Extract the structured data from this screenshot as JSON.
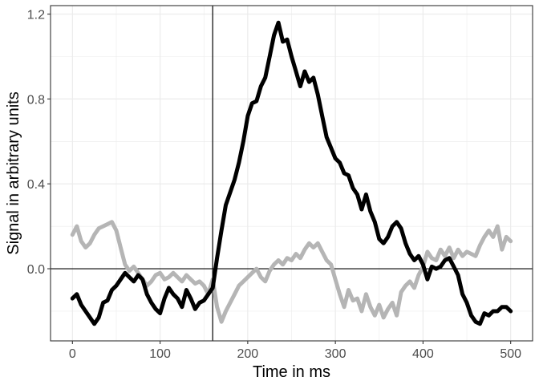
{
  "chart_data": {
    "type": "line",
    "title": "",
    "xlabel": "Time in ms",
    "ylabel": "Signal in arbitrary units",
    "xlim": [
      -25,
      525
    ],
    "ylim": [
      -0.34,
      1.24
    ],
    "x_ticks": [
      0,
      100,
      200,
      300,
      400,
      500
    ],
    "x_tick_labels": [
      "0",
      "100",
      "200",
      "300",
      "400",
      "500"
    ],
    "y_ticks": [
      0.0,
      0.4,
      0.8,
      1.2
    ],
    "y_tick_labels": [
      "0.0",
      "0.4",
      "0.8",
      "1.2"
    ],
    "grid": true,
    "reference_lines": {
      "vertical_x": 160,
      "horizontal_y": 0
    },
    "colors": {
      "series_dark": "#000000",
      "series_light": "#b5b5b5",
      "grid": "#ebebeb",
      "border": "#333333"
    },
    "series": [
      {
        "color": "#b5b5b5",
        "x": [
          0,
          5,
          10,
          15,
          20,
          25,
          30,
          35,
          40,
          45,
          50,
          55,
          60,
          65,
          70,
          75,
          80,
          85,
          90,
          95,
          100,
          105,
          110,
          115,
          120,
          125,
          130,
          135,
          140,
          145,
          150,
          155,
          160,
          165,
          170,
          175,
          180,
          185,
          190,
          195,
          200,
          205,
          210,
          215,
          220,
          225,
          230,
          235,
          240,
          245,
          250,
          255,
          260,
          265,
          270,
          275,
          280,
          285,
          290,
          295,
          300,
          305,
          310,
          315,
          320,
          325,
          330,
          335,
          340,
          345,
          350,
          355,
          360,
          365,
          370,
          375,
          380,
          385,
          390,
          395,
          400,
          405,
          410,
          415,
          420,
          425,
          430,
          435,
          440,
          445,
          450,
          455,
          460,
          465,
          470,
          475,
          480,
          485,
          490,
          495,
          500
        ],
        "y": [
          0.16,
          0.2,
          0.13,
          0.1,
          0.12,
          0.16,
          0.19,
          0.2,
          0.21,
          0.22,
          0.18,
          0.1,
          0.02,
          -0.01,
          0.01,
          -0.02,
          -0.05,
          -0.08,
          -0.06,
          -0.03,
          -0.02,
          -0.05,
          -0.04,
          -0.02,
          -0.04,
          -0.06,
          -0.03,
          -0.05,
          -0.07,
          -0.06,
          -0.08,
          -0.12,
          -0.05,
          -0.18,
          -0.25,
          -0.2,
          -0.16,
          -0.12,
          -0.08,
          -0.06,
          -0.04,
          -0.02,
          0.0,
          -0.04,
          -0.06,
          -0.01,
          0.02,
          0.04,
          0.02,
          0.05,
          0.04,
          0.07,
          0.05,
          0.09,
          0.12,
          0.1,
          0.12,
          0.08,
          0.04,
          0.02,
          -0.05,
          -0.12,
          -0.18,
          -0.1,
          -0.15,
          -0.14,
          -0.2,
          -0.12,
          -0.18,
          -0.22,
          -0.17,
          -0.23,
          -0.19,
          -0.16,
          -0.22,
          -0.11,
          -0.08,
          -0.06,
          -0.09,
          -0.03,
          0.01,
          0.08,
          0.05,
          0.04,
          0.09,
          0.06,
          0.1,
          0.05,
          0.09,
          0.06,
          0.08,
          0.07,
          0.06,
          0.11,
          0.15,
          0.18,
          0.15,
          0.2,
          0.09,
          0.15,
          0.13
        ]
      },
      {
        "color": "#000000",
        "x": [
          0,
          5,
          10,
          15,
          20,
          25,
          30,
          35,
          40,
          45,
          50,
          55,
          60,
          65,
          70,
          75,
          80,
          85,
          90,
          95,
          100,
          105,
          110,
          115,
          120,
          125,
          130,
          135,
          140,
          145,
          150,
          155,
          160,
          165,
          170,
          175,
          180,
          185,
          190,
          195,
          200,
          205,
          210,
          215,
          220,
          225,
          230,
          235,
          240,
          245,
          250,
          255,
          260,
          265,
          270,
          275,
          280,
          285,
          290,
          295,
          300,
          305,
          310,
          315,
          320,
          325,
          330,
          335,
          340,
          345,
          350,
          355,
          360,
          365,
          370,
          375,
          380,
          385,
          390,
          395,
          400,
          405,
          410,
          415,
          420,
          425,
          430,
          435,
          440,
          445,
          450,
          455,
          460,
          465,
          470,
          475,
          480,
          485,
          490,
          495,
          500
        ],
        "y": [
          -0.14,
          -0.12,
          -0.17,
          -0.2,
          -0.23,
          -0.26,
          -0.23,
          -0.16,
          -0.15,
          -0.1,
          -0.08,
          -0.05,
          -0.02,
          -0.04,
          -0.06,
          -0.03,
          -0.05,
          -0.12,
          -0.16,
          -0.19,
          -0.21,
          -0.14,
          -0.09,
          -0.12,
          -0.14,
          -0.18,
          -0.1,
          -0.14,
          -0.19,
          -0.16,
          -0.15,
          -0.12,
          -0.09,
          0.05,
          0.18,
          0.3,
          0.36,
          0.42,
          0.5,
          0.6,
          0.72,
          0.78,
          0.79,
          0.86,
          0.9,
          1.0,
          1.1,
          1.16,
          1.07,
          1.08,
          1.0,
          0.93,
          0.86,
          0.93,
          0.88,
          0.9,
          0.82,
          0.72,
          0.62,
          0.57,
          0.52,
          0.5,
          0.45,
          0.44,
          0.38,
          0.35,
          0.28,
          0.35,
          0.27,
          0.22,
          0.14,
          0.12,
          0.15,
          0.2,
          0.22,
          0.19,
          0.12,
          0.07,
          0.04,
          0.06,
          0.02,
          -0.05,
          0.01,
          0.0,
          0.01,
          0.04,
          0.05,
          0.01,
          -0.03,
          -0.12,
          -0.16,
          -0.22,
          -0.25,
          -0.26,
          -0.21,
          -0.22,
          -0.2,
          -0.2,
          -0.18,
          -0.18,
          -0.2
        ]
      }
    ]
  }
}
